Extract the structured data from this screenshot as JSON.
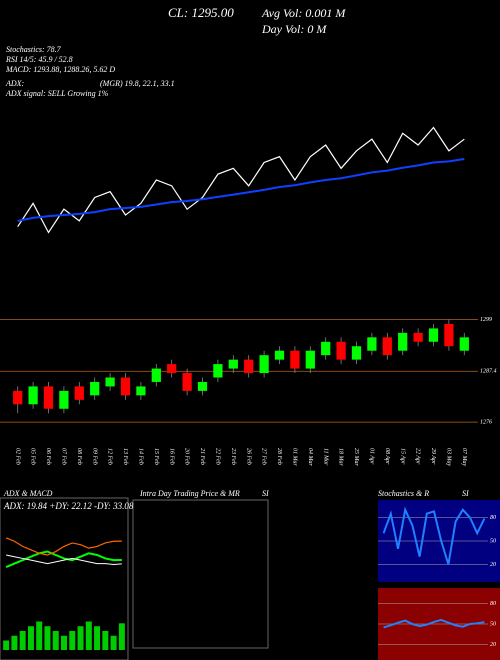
{
  "header": {
    "close": "CL: 1295.00",
    "avg_vol": "Avg Vol: 0.001 M",
    "day_vol": "Day Vol: 0  M",
    "stochastics": "Stochastics: 78.7",
    "rsi": "RSI 14/5: 45.9 / 52.8",
    "macd": "MACD: 1293.88, 1288.26, 5.62 D",
    "adx": "ADX:",
    "mgr": "(MGR) 19.8, 22.1, 33.1",
    "adx_signal": "ADX  signal: SELL Growing 1%"
  },
  "price": {
    "categories": [
      "02 Feb",
      "05 Feb",
      "06 Feb",
      "07 Feb",
      "08 Feb",
      "09 Feb",
      "12 Feb",
      "13 Feb",
      "14 Feb",
      "15 Feb",
      "16 Feb",
      "20 Feb",
      "21 Feb",
      "22 Feb",
      "23 Feb",
      "26 Feb",
      "27 Feb",
      "28 Feb",
      "01 Mar",
      "04 Mar",
      "11 Mar",
      "18 Mar",
      "25 Mar",
      "01 Apr",
      "08 Apr",
      "15 Apr",
      "22 Apr",
      "29 Apr",
      "03 May",
      "07 May"
    ],
    "close": [
      1280,
      1284,
      1279,
      1283,
      1281,
      1285,
      1286,
      1282,
      1284,
      1288,
      1287,
      1283,
      1285,
      1289,
      1290,
      1287,
      1291,
      1292,
      1288,
      1292,
      1294,
      1290,
      1293,
      1295,
      1291,
      1296,
      1294,
      1297,
      1293,
      1295
    ],
    "open": [
      1283,
      1280,
      1284,
      1279,
      1284,
      1282,
      1284,
      1286,
      1282,
      1285,
      1289,
      1287,
      1283,
      1286,
      1288,
      1290,
      1287,
      1290,
      1292,
      1288,
      1291,
      1294,
      1290,
      1292,
      1295,
      1292,
      1296,
      1294,
      1298,
      1292
    ],
    "high": [
      1284,
      1285,
      1285,
      1284,
      1285,
      1286,
      1287,
      1287,
      1285,
      1289,
      1290,
      1288,
      1286,
      1290,
      1291,
      1291,
      1292,
      1293,
      1293,
      1293,
      1295,
      1295,
      1294,
      1296,
      1296,
      1297,
      1297,
      1298,
      1299,
      1296
    ],
    "low": [
      1278,
      1279,
      1278,
      1278,
      1280,
      1281,
      1283,
      1281,
      1281,
      1284,
      1286,
      1282,
      1282,
      1285,
      1287,
      1286,
      1286,
      1289,
      1287,
      1287,
      1290,
      1289,
      1289,
      1291,
      1290,
      1291,
      1293,
      1293,
      1292,
      1291
    ],
    "sma": [
      1281,
      1281.5,
      1281.8,
      1282,
      1282.2,
      1282.5,
      1283,
      1283.2,
      1283.4,
      1283.8,
      1284.2,
      1284.4,
      1284.7,
      1285.1,
      1285.5,
      1285.9,
      1286.3,
      1286.8,
      1287.1,
      1287.6,
      1288,
      1288.3,
      1288.8,
      1289.3,
      1289.6,
      1290.1,
      1290.5,
      1291,
      1291.2,
      1291.6
    ],
    "line_ylim": [
      1276,
      1300
    ],
    "candle_ylim": [
      1272,
      1300
    ],
    "yticks": [
      1299,
      1287.4,
      1276
    ],
    "up_color": "#00ff00",
    "down_color": "#ff0000",
    "line_color": "#ffffff",
    "sma_color": "#1040ff"
  },
  "panels": {
    "adx_title": "ADX  & MACD",
    "adx_values": "ADX: 19.84  +DY: 22.12  -DY: 33.08",
    "intraday_title": "Intra  Day Trading Price  & MR",
    "intraday_suffix": "SI",
    "stoch_title": "Stochastics & R",
    "stoch_suffix": "SI",
    "adx_ylim": [
      0,
      50
    ],
    "adx": [
      25,
      24,
      23,
      22,
      21,
      20,
      21,
      22,
      23,
      22,
      21,
      20,
      20,
      19.5,
      19.84
    ],
    "pdi": [
      18,
      20,
      22,
      24,
      26,
      27,
      25,
      23,
      22,
      24,
      26,
      25,
      23,
      22,
      22.12
    ],
    "mdi": [
      35,
      33,
      30,
      28,
      26,
      25,
      27,
      30,
      32,
      31,
      29,
      30,
      32,
      33,
      33.08
    ],
    "macd_ylim": [
      0,
      8
    ],
    "macd_hist": [
      2,
      3,
      4,
      5,
      6,
      5,
      4,
      3,
      4,
      5,
      6,
      5,
      4,
      3,
      5.62
    ],
    "osc_ylim": [
      0,
      100
    ],
    "stoch": [
      60,
      85,
      40,
      90,
      70,
      30,
      85,
      88,
      50,
      20,
      75,
      90,
      80,
      60,
      78.7
    ],
    "rsi": [
      45,
      48,
      52,
      55,
      50,
      47,
      49,
      53,
      56,
      52,
      48,
      46,
      50,
      51,
      52.8
    ],
    "stoch_ticks": [
      80,
      50,
      20
    ],
    "rsi_ticks": [
      80,
      50,
      20
    ],
    "stoch_bg": "#000080",
    "rsi_bg": "#8b0000"
  }
}
